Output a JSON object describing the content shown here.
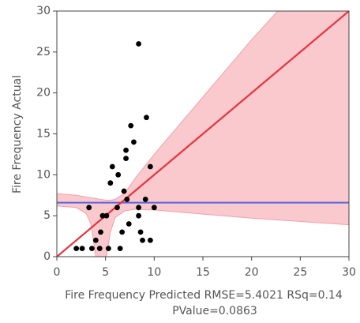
{
  "chart_data": {
    "type": "scatter",
    "ylabel": "Fire Frequency Actual",
    "xlabel": [
      "Fire Frequency Predicted RMSE=5.4021 RSq=0.14",
      "PValue=0.0863"
    ],
    "x": [
      2.0,
      2.6,
      3.3,
      3.6,
      4.0,
      4.4,
      4.5,
      4.7,
      5.1,
      5.3,
      5.5,
      5.7,
      6.2,
      6.3,
      6.5,
      6.7,
      6.9,
      7.1,
      7.1,
      7.2,
      7.4,
      7.6,
      7.9,
      8.4,
      8.4,
      8.4,
      8.6,
      8.8,
      9.1,
      9.2,
      9.6,
      9.6,
      10.0
    ],
    "y": [
      1,
      1,
      6,
      1,
      2,
      1,
      3,
      5,
      5,
      1,
      9,
      11,
      6,
      10,
      1,
      3,
      8,
      12,
      13,
      7,
      4,
      16,
      14,
      26,
      6,
      5,
      3,
      2,
      7,
      17,
      2,
      11,
      6
    ],
    "color": "#000000",
    "xlim": [
      0,
      30
    ],
    "ylim": [
      0,
      30
    ],
    "xticks": [
      0,
      5,
      10,
      15,
      20,
      25,
      30
    ],
    "yticks": [
      0,
      5,
      10,
      15,
      20,
      25,
      30
    ],
    "fit_line": {
      "color": "#e8323c",
      "x": [
        0,
        30
      ],
      "y": [
        0,
        30
      ]
    },
    "mean_line": {
      "color": "#5b63e0",
      "y": 6.6
    },
    "band": {
      "color": "#f9c9cd",
      "edge": "#f2a0a8",
      "x": [
        0,
        2,
        3,
        3.5,
        4,
        4.5,
        5.1,
        5.5,
        6,
        7,
        8,
        10,
        15,
        20,
        25,
        30
      ],
      "upper": [
        7.7,
        7.5,
        7.3,
        7.2,
        7.1,
        7.0,
        6.9,
        6.9,
        7.0,
        7.8,
        9.5,
        12.5,
        19.5,
        26.5,
        33,
        40
      ],
      "lower": [
        6.2,
        6.0,
        5.3,
        4,
        0,
        -1,
        0,
        3,
        4.8,
        5.6,
        5.8,
        5.7,
        5.2,
        4.7,
        4.3,
        3.9
      ]
    }
  }
}
